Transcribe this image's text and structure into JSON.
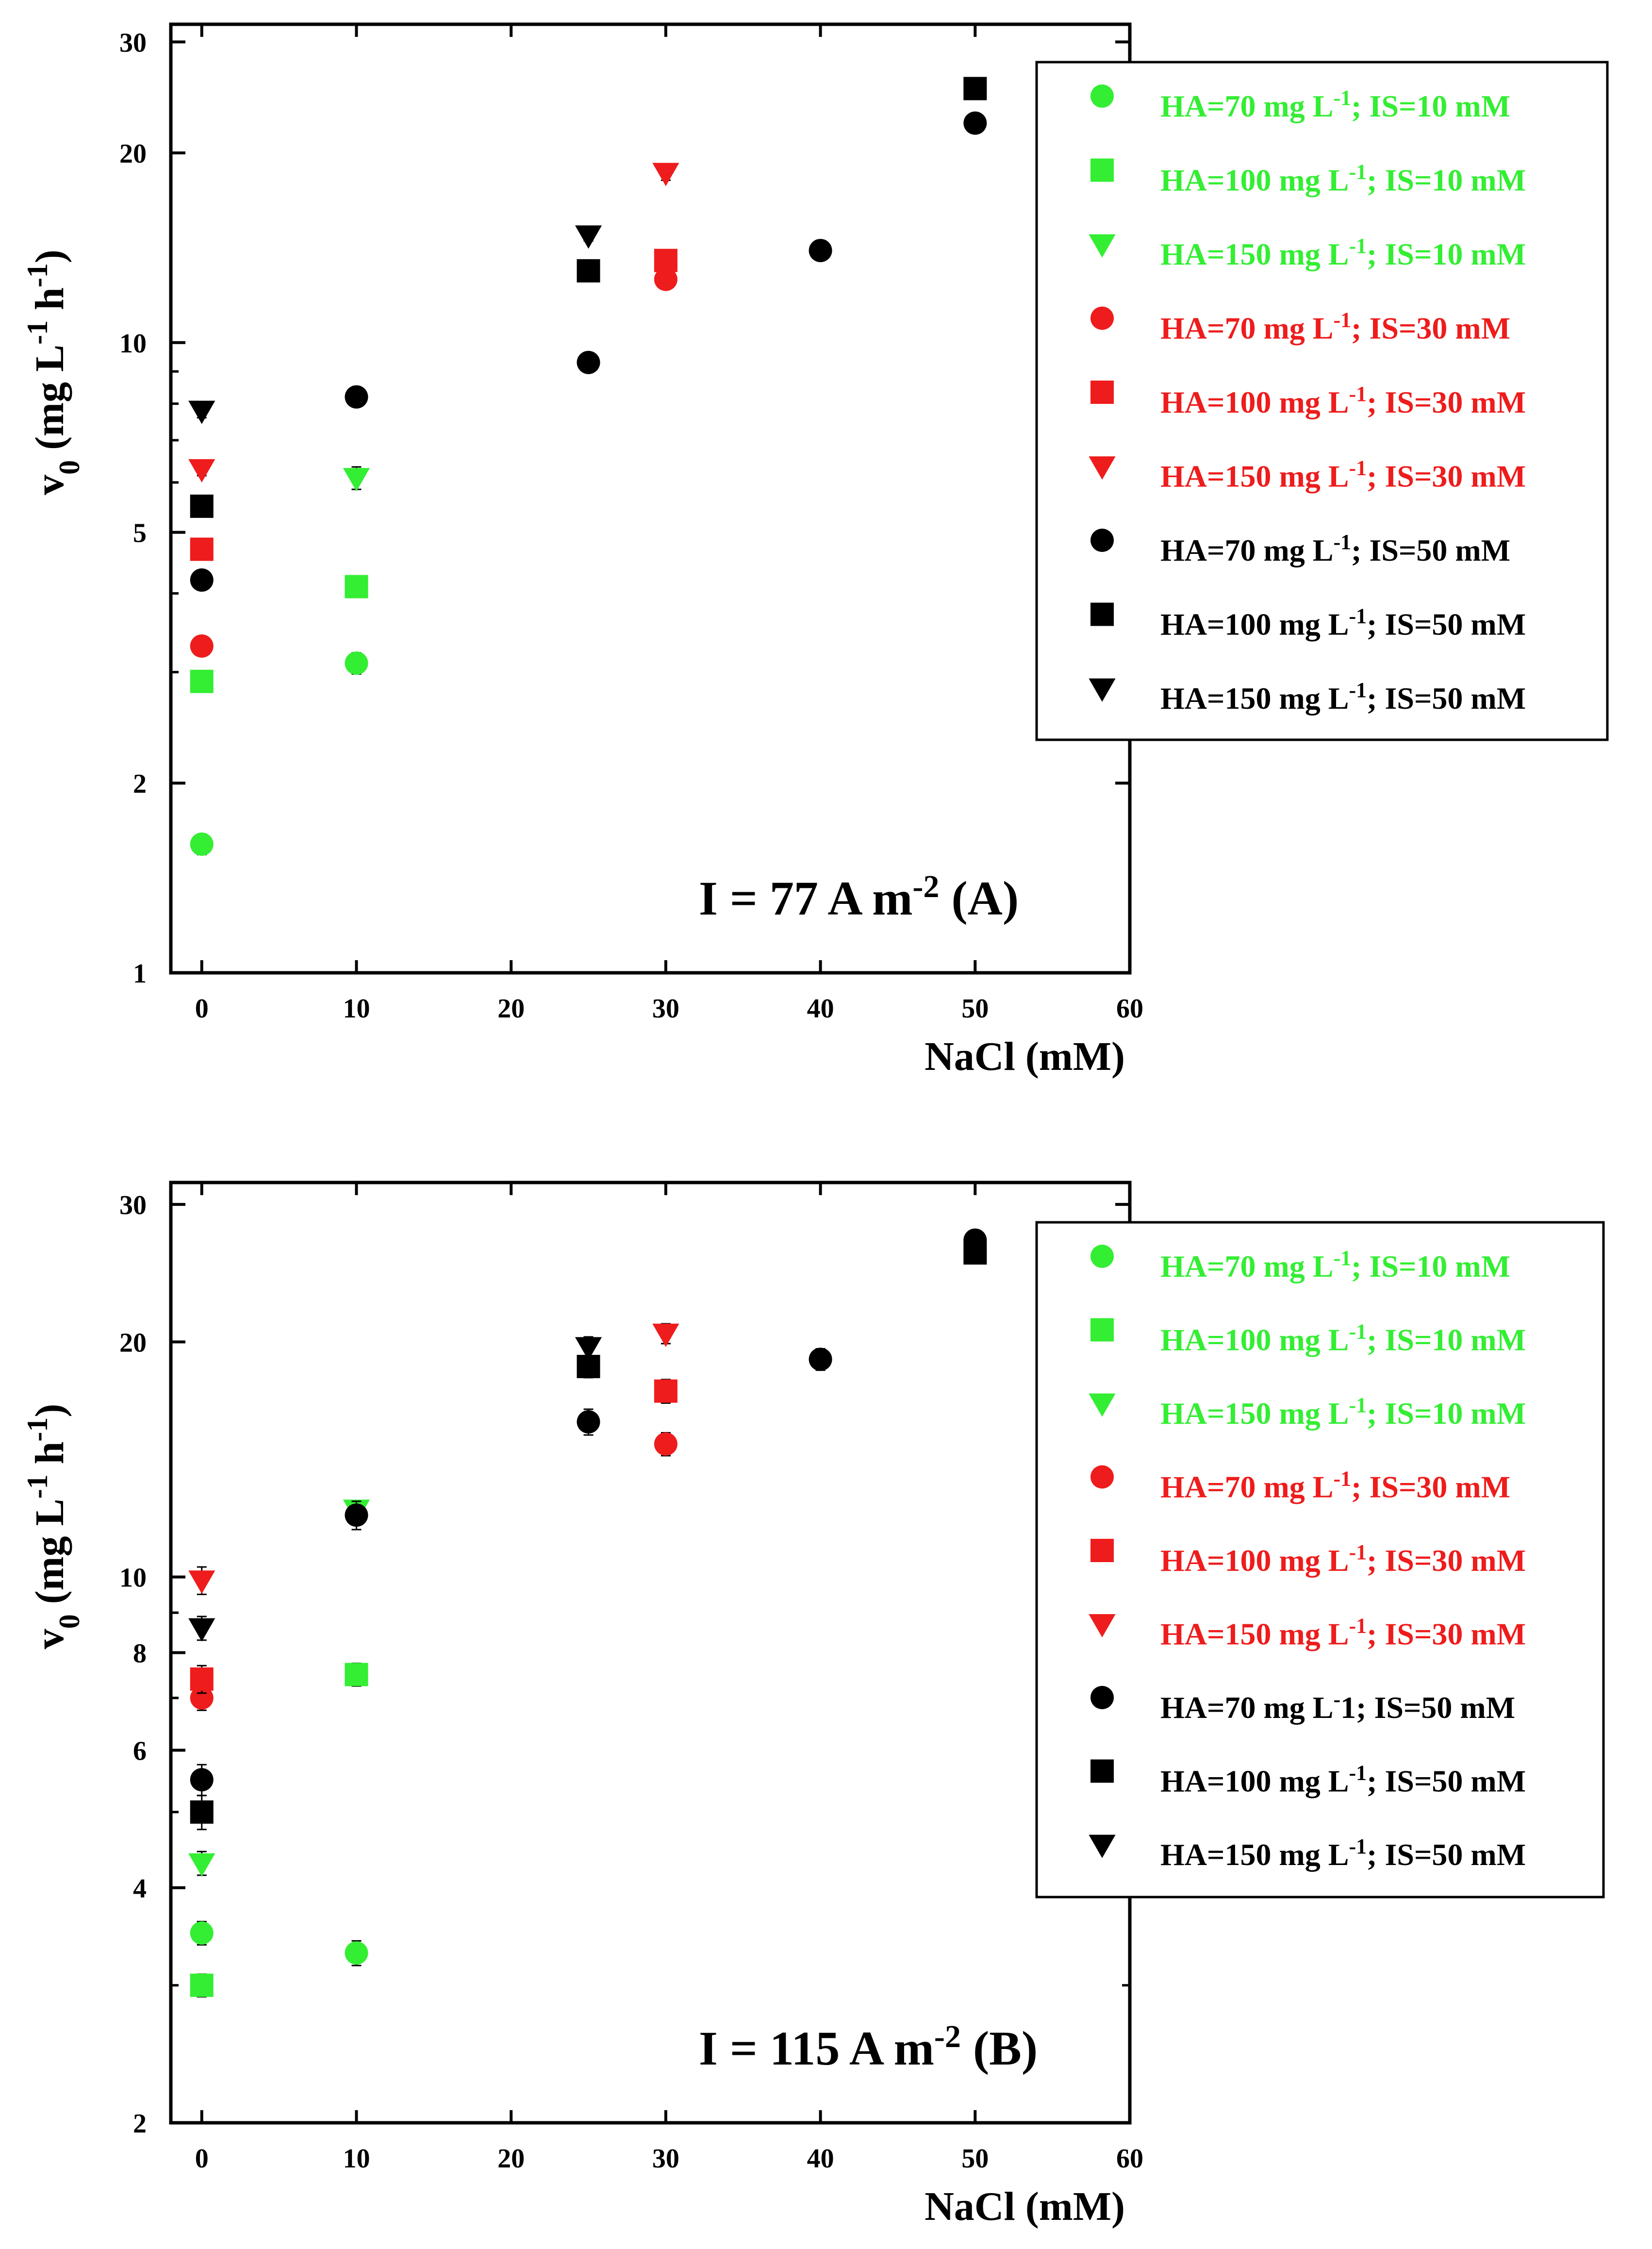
{
  "colors": {
    "green": "#33ee33",
    "red": "#ee1c1c",
    "black": "#000000"
  },
  "chart_data": [
    {
      "type": "scatter",
      "panel": "A",
      "annotation": {
        "text": "I = 77 A m",
        "sup": "-2",
        "suffix": " (A)"
      },
      "xlabel": "NaCl (mM)",
      "ylabel": {
        "base": "v",
        "sub": "0",
        "text": " (mg L",
        "sup1": "-1",
        "mid": " h",
        "sup2": "-1",
        "end": ")"
      },
      "xlim": [
        -2,
        60
      ],
      "ylim": [
        1,
        32
      ],
      "yscale": "log",
      "xticks": [
        0,
        10,
        20,
        30,
        40,
        50,
        60
      ],
      "yticks": [
        1,
        2,
        5,
        10,
        20,
        30
      ],
      "yticks_minor": [
        3,
        4,
        6,
        7,
        8,
        9
      ],
      "series": [
        {
          "name": "HA=70 mg L-1; IS=10 mM",
          "legend": {
            "pre": "HA=70 mg L",
            "sup": "-1",
            "post": "; IS=10 mM"
          },
          "marker": "circle",
          "color": "green",
          "x": [
            0,
            10
          ],
          "y": [
            1.6,
            3.1
          ],
          "err": [
            0.06,
            0.12
          ]
        },
        {
          "name": "HA=100 mg L-1; IS=10 mM",
          "legend": {
            "pre": "HA=100 mg L",
            "sup": "-1",
            "post": "; IS=10 mM"
          },
          "marker": "square",
          "color": "green",
          "x": [
            0,
            10
          ],
          "y": [
            2.9,
            4.1
          ],
          "err": [
            0.06,
            0.14
          ]
        },
        {
          "name": "HA=150 mg L-1; IS=10 mM",
          "legend": {
            "pre": "HA=150 mg L",
            "sup": "-1",
            "post": "; IS=10 mM"
          },
          "marker": "triangle",
          "color": "green",
          "x": [
            10
          ],
          "y": [
            6.1
          ],
          "err": [
            0.25
          ]
        },
        {
          "name": "HA=70 mg L-1; IS=30 mM",
          "legend": {
            "pre": "HA=70 mg L",
            "sup": "-1",
            "post": "; IS=30 mM"
          },
          "marker": "circle",
          "color": "red",
          "x": [
            0,
            30
          ],
          "y": [
            3.3,
            12.6
          ],
          "err": [
            0.1,
            0.3
          ]
        },
        {
          "name": "HA=100 mg L-1; IS=30 mM",
          "legend": {
            "pre": "HA=100 mg L",
            "sup": "-1",
            "post": "; IS=30 mM"
          },
          "marker": "square",
          "color": "red",
          "x": [
            0,
            30
          ],
          "y": [
            4.7,
            13.5
          ],
          "err": [
            0.1,
            0.3
          ]
        },
        {
          "name": "HA=150 mg L-1; IS=30 mM",
          "legend": {
            "pre": "HA=150 mg L",
            "sup": "-1",
            "post": "; IS=30 mM"
          },
          "marker": "triangle",
          "color": "red",
          "x": [
            0,
            30
          ],
          "y": [
            6.3,
            18.6
          ],
          "err": [
            0.15,
            0.5
          ]
        },
        {
          "name": "HA=70 mg L-1; IS=50 mM",
          "legend": {
            "pre": "HA=70 mg L",
            "sup": "-1",
            "post": "; IS=50 mM"
          },
          "marker": "circle",
          "color": "black",
          "x": [
            0,
            10,
            25,
            40,
            50
          ],
          "y": [
            4.2,
            8.2,
            9.3,
            14.0,
            22.3
          ],
          "err": [
            0.1,
            0.25,
            0.25,
            0.4,
            0.5
          ]
        },
        {
          "name": "HA=100 mg L-1; IS=50 mM",
          "legend": {
            "pre": "HA=100 mg L",
            "sup": "-1",
            "post": "; IS=50 mM"
          },
          "marker": "square",
          "color": "black",
          "x": [
            0,
            25,
            50
          ],
          "y": [
            5.5,
            13.0,
            25.3
          ],
          "err": [
            0.1,
            0.3,
            0.5
          ]
        },
        {
          "name": "HA=150 mg L-1; IS=50 mM",
          "legend": {
            "pre": "HA=150 mg L",
            "sup": "-1",
            "post": "; IS=50 mM"
          },
          "marker": "triangle",
          "color": "black",
          "x": [
            0,
            25
          ],
          "y": [
            7.8,
            14.8
          ],
          "err": [
            0.2,
            0.3
          ]
        }
      ]
    },
    {
      "type": "scatter",
      "panel": "B",
      "annotation": {
        "text": "I = 115 A m",
        "sup": "-2",
        "suffix": " (B)"
      },
      "xlabel": "NaCl (mM)",
      "ylabel": {
        "base": "v",
        "sub": "0",
        "text": " (mg L",
        "sup1": "-1",
        "mid": " h",
        "sup2": "-1",
        "end": ")"
      },
      "xlim": [
        -2,
        60
      ],
      "ylim": [
        2,
        32
      ],
      "yscale": "log",
      "xticks": [
        0,
        10,
        20,
        30,
        40,
        50,
        60
      ],
      "yticks": [
        2,
        4,
        6,
        8,
        10,
        20,
        30
      ],
      "yticks_minor": [
        3,
        5,
        7,
        9
      ],
      "series": [
        {
          "name": "HA=70 mg L-1; IS=10 mM",
          "legend": {
            "pre": "HA=70 mg L",
            "sup": "-1",
            "post": "; IS=10 mM"
          },
          "marker": "circle",
          "color": "green",
          "x": [
            0,
            10
          ],
          "y": [
            3.5,
            3.3
          ],
          "err": [
            0.12,
            0.12
          ]
        },
        {
          "name": "HA=100 mg L-1; IS=10 mM",
          "legend": {
            "pre": "HA=100 mg L",
            "sup": "-1",
            "post": "; IS=10 mM"
          },
          "marker": "square",
          "color": "green",
          "x": [
            0,
            10
          ],
          "y": [
            3.0,
            7.5
          ],
          "err": [
            0.1,
            0.25
          ]
        },
        {
          "name": "HA=150 mg L-1; IS=10 mM",
          "legend": {
            "pre": "HA=150 mg L",
            "sup": "-1",
            "post": "; IS=10 mM"
          },
          "marker": "triangle",
          "color": "green",
          "x": [
            0,
            10
          ],
          "y": [
            4.3,
            12.2
          ],
          "err": [
            0.15,
            0.3
          ]
        },
        {
          "name": "HA=70 mg L-1; IS=30 mM",
          "legend": {
            "pre": "HA=70 mg L",
            "sup": "-1",
            "post": "; IS=30 mM"
          },
          "marker": "circle",
          "color": "red",
          "x": [
            0,
            30
          ],
          "y": [
            7.0,
            14.8
          ],
          "err": [
            0.25,
            0.5
          ]
        },
        {
          "name": "HA=100 mg L-1; IS=30 mM",
          "legend": {
            "pre": "HA=100 mg L",
            "sup": "-1",
            "post": "; IS=30 mM"
          },
          "marker": "square",
          "color": "red",
          "x": [
            0,
            30
          ],
          "y": [
            7.4,
            17.3
          ],
          "err": [
            0.3,
            0.6
          ]
        },
        {
          "name": "HA=150 mg L-1; IS=30 mM",
          "legend": {
            "pre": "HA=150 mg L",
            "sup": "-1",
            "post": "; IS=30 mM"
          },
          "marker": "triangle",
          "color": "red",
          "x": [
            0,
            30
          ],
          "y": [
            9.9,
            20.5
          ],
          "err": [
            0.4,
            0.6
          ]
        },
        {
          "name": "HA=70 mg L-1; IS=50 mM",
          "legend": {
            "pre": "HA=70 mg L",
            "sup": "-",
            "post": "1; IS=50 mM"
          },
          "marker": "circle",
          "color": "black",
          "x": [
            0,
            10,
            25,
            40,
            50
          ],
          "y": [
            5.5,
            12.0,
            15.8,
            19.0,
            27.0
          ],
          "err": [
            0.25,
            0.5,
            0.6,
            0.6,
            0.8
          ]
        },
        {
          "name": "HA=100 mg L-1; IS=50 mM",
          "legend": {
            "pre": "HA=100 mg L",
            "sup": "-1",
            "post": "; IS=50 mM"
          },
          "marker": "square",
          "color": "black",
          "x": [
            0,
            25,
            50
          ],
          "y": [
            5.0,
            18.6,
            26.0
          ],
          "err": [
            0.25,
            0.6,
            0.8
          ]
        },
        {
          "name": "HA=150 mg L-1; IS=50 mM",
          "legend": {
            "pre": "HA=150 mg L",
            "sup": "-1",
            "post": "; IS=50 mM"
          },
          "marker": "triangle",
          "color": "black",
          "x": [
            0,
            25
          ],
          "y": [
            8.6,
            19.7
          ],
          "err": [
            0.3,
            0.6
          ]
        }
      ]
    }
  ]
}
